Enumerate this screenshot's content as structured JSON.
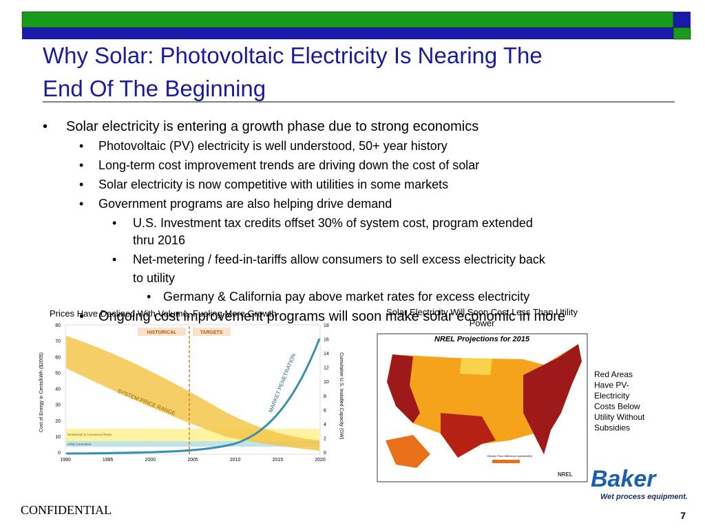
{
  "slide": {
    "title_lines": [
      "Why Solar: Photovoltaic Electricity Is Nearing The",
      "End Of The Beginning"
    ],
    "bullets": [
      {
        "level": 1,
        "text": "Solar electricity is entering a growth phase due to strong economics"
      },
      {
        "level": 2,
        "text": "Photovoltaic (PV) electricity is well understood, 50+ year history"
      },
      {
        "level": 2,
        "text": "Long-term cost improvement trends are driving down the cost of solar"
      },
      {
        "level": 2,
        "text": "Solar electricity is now competitive with utilities in some markets"
      },
      {
        "level": 2,
        "text": "Government programs are also helping drive demand"
      },
      {
        "level": 3,
        "text": "U.S. Investment tax credits offset 30% of system cost, program extended"
      },
      {
        "level": 3,
        "text": "thru 2016",
        "continuation": true
      },
      {
        "level": 3,
        "text": "Net-metering / feed-in-tariffs allow consumers to sell excess electricity back"
      },
      {
        "level": 3,
        "text": "to utility",
        "continuation": true
      },
      {
        "level": 4,
        "text": "Germany & California pay above market rates for excess electricity"
      },
      {
        "level": 2,
        "text": "Ongoing cost improvement programs will soon make solar economic in more"
      }
    ],
    "left_caption": "Prices Have Declined With Volume, Fueling More Growth",
    "right_caption_lines": [
      "Solar Electricity Will Soon Cost Less Than Utility",
      "Power"
    ],
    "left_chart": {
      "left_ticks": [
        "80",
        "70",
        "60",
        "50",
        "40",
        "30",
        "20",
        "10",
        "0"
      ],
      "right_ticks": [
        "18",
        "16",
        "14",
        "12",
        "10",
        "8",
        "6",
        "4",
        "2",
        "0"
      ],
      "x_ticks": [
        "1990",
        "1995",
        "2000",
        "2005",
        "2010",
        "2015",
        "2020"
      ],
      "historical": "HISTORICAL",
      "targets": "TARGETS",
      "price_range": "SYSTEM PRICE RANGE",
      "penetration": "MARKET PENETRATION",
      "left_axis": "Cost of Energy in Cents/kWh ($2005)",
      "right_axis": "Cumulative U.S. Installed Capacity (GW)",
      "band1": "Residential & Commercial Rates",
      "band2": "Utility Generation"
    },
    "map_title": "NREL Projections for 2015",
    "map_legend": "Electric Price Difference (cents/kWh)",
    "map_logo": "NREL",
    "side_note_lines": [
      "Red Areas",
      "Have PV-",
      "Electricity",
      "Costs Below",
      "Utility Without",
      "Subsidies"
    ],
    "logo": "Baker",
    "logo_tagline": "Wet process equipment.",
    "footer": "CONFIDENTIAL",
    "page_number": "7"
  }
}
